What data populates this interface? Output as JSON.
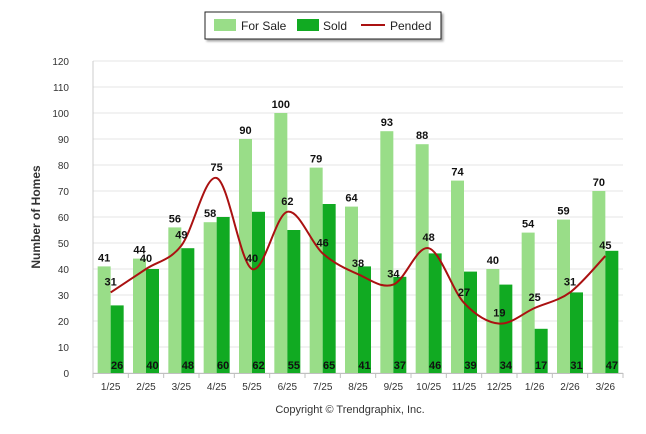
{
  "chart_data": {
    "type": "bar",
    "categories": [
      "1/25",
      "2/25",
      "3/25",
      "4/25",
      "5/25",
      "6/25",
      "7/25",
      "8/25",
      "9/25",
      "10/25",
      "11/25",
      "12/25",
      "1/26",
      "2/26",
      "3/26"
    ],
    "series": [
      {
        "name": "For Sale",
        "type": "bar",
        "color": "#99dd88",
        "values": [
          41,
          44,
          56,
          58,
          90,
          100,
          79,
          64,
          93,
          88,
          74,
          40,
          54,
          59,
          70
        ]
      },
      {
        "name": "Sold",
        "type": "bar",
        "color": "#11aa22",
        "values": [
          26,
          40,
          48,
          60,
          62,
          55,
          65,
          41,
          37,
          46,
          39,
          34,
          17,
          31,
          47
        ]
      },
      {
        "name": "Pended",
        "type": "line",
        "color": "#aa1111",
        "values": [
          31,
          40,
          49,
          75,
          40,
          62,
          46,
          38,
          34,
          48,
          27,
          19,
          25,
          31,
          45
        ]
      }
    ],
    "ylabel": "Number of Homes",
    "ylim": [
      0,
      120
    ],
    "yticks": [
      0,
      10,
      20,
      30,
      40,
      50,
      60,
      70,
      80,
      90,
      100,
      110,
      120
    ],
    "grid": true,
    "legend": "top-center",
    "credit": "Copyright © Trendgraphix, Inc."
  }
}
